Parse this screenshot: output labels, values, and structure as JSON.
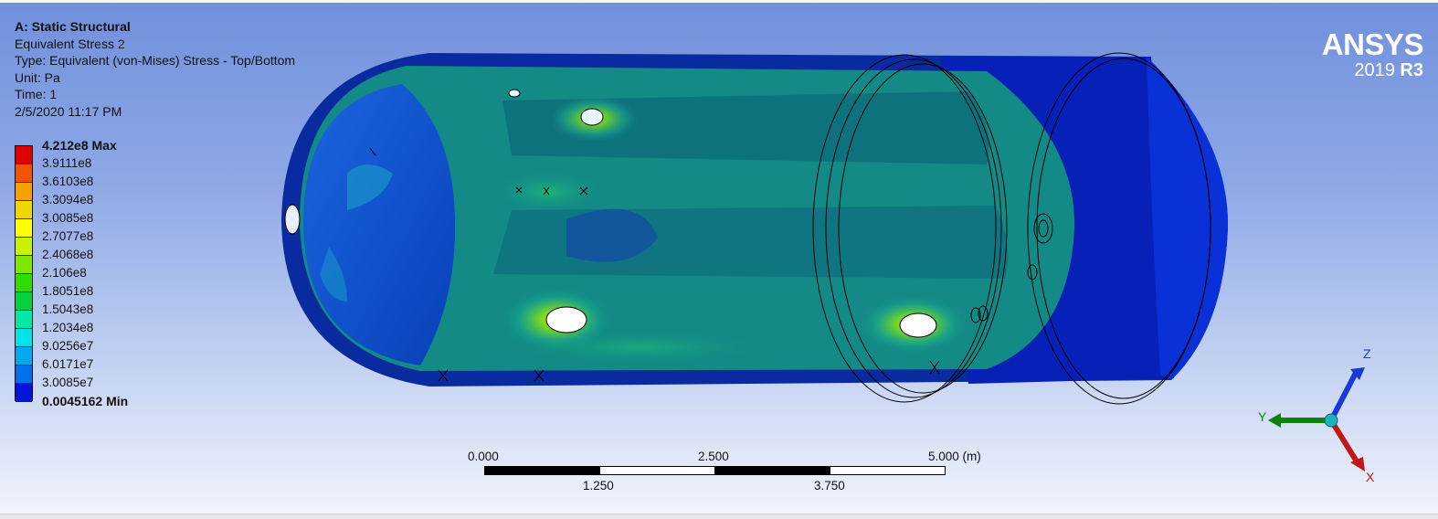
{
  "info": {
    "analysis": "A: Static Structural",
    "result": "Equivalent Stress 2",
    "type": "Type: Equivalent (von-Mises) Stress - Top/Bottom",
    "unit": "Unit: Pa",
    "time": "Time: 1",
    "date": "2/5/2020 11:17 PM"
  },
  "legend": {
    "labels": [
      "4.212e8 Max",
      "3.9111e8",
      "3.6103e8",
      "3.3094e8",
      "3.0085e8",
      "2.7077e8",
      "2.4068e8",
      "2.106e8",
      "1.8051e8",
      "1.5043e8",
      "1.2034e8",
      "9.0256e7",
      "6.0171e7",
      "3.0085e7",
      "0.0045162 Min"
    ],
    "colors": [
      "#e10000",
      "#f25500",
      "#f7a000",
      "#f3d600",
      "#ffff00",
      "#c8f200",
      "#7ce800",
      "#2fdc00",
      "#00d33c",
      "#00e8a6",
      "#00e3e8",
      "#00a8f0",
      "#0070e8",
      "#0015d8"
    ]
  },
  "logo": {
    "brand": "ANSYS",
    "version": "2019",
    "release": "R3"
  },
  "scale": {
    "ticks_top": [
      "0.000",
      "2.500",
      "5.000 (m)"
    ],
    "ticks_bottom": [
      "1.250",
      "3.750"
    ]
  },
  "triad": {
    "z": "Z",
    "y": "Y",
    "x": "X"
  },
  "colors": {
    "axis_x": "#c01818",
    "axis_y": "#108010",
    "axis_z": "#1838d8"
  }
}
